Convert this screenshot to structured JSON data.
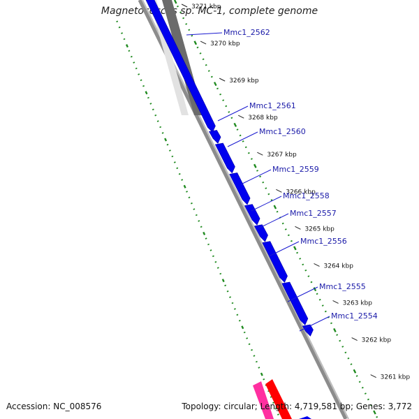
{
  "title": "Magnetococcus sp. MC-1, complete genome",
  "accession": "Accession: NC_008576",
  "topology": "Topology: circular; Length: 4,719,581 bp; Genes: 3,772",
  "ticks": [
    {
      "label": "3271 kbp",
      "pos": 3271
    },
    {
      "label": "3270 kbp",
      "pos": 3270
    },
    {
      "label": "3269 kbp",
      "pos": 3269
    },
    {
      "label": "3268 kbp",
      "pos": 3268
    },
    {
      "label": "3267 kbp",
      "pos": 3267
    },
    {
      "label": "3266 kbp",
      "pos": 3266
    },
    {
      "label": "3265 kbp",
      "pos": 3265
    },
    {
      "label": "3264 kbp",
      "pos": 3264
    },
    {
      "label": "3263 kbp",
      "pos": 3263
    },
    {
      "label": "3262 kbp",
      "pos": 3262
    },
    {
      "label": "3261 kbp",
      "pos": 3261
    }
  ],
  "genes": [
    {
      "label": "Mmc1_2562",
      "start": 3271.3,
      "end": 3267.6,
      "track": "outer",
      "color": "#0000ee"
    },
    {
      "label": "Mmc1_2561",
      "start": 3267.6,
      "end": 3267.3,
      "track": "outer",
      "color": "#0000ee"
    },
    {
      "label": "Mmc1_2560",
      "start": 3267.25,
      "end": 3266.5,
      "track": "outer",
      "color": "#0000ee"
    },
    {
      "label": "Mmc1_2559",
      "start": 3266.45,
      "end": 3265.65,
      "track": "outer",
      "color": "#0000ee"
    },
    {
      "label": "Mmc1_2558",
      "start": 3265.6,
      "end": 3265.1,
      "track": "outer",
      "color": "#0000ee"
    },
    {
      "label": "Mmc1_2557",
      "start": 3265.05,
      "end": 3264.65,
      "track": "outer",
      "color": "#0000ee"
    },
    {
      "label": "Mmc1_2556",
      "start": 3264.6,
      "end": 3263.55,
      "track": "outer",
      "color": "#0000ee"
    },
    {
      "label": "Mmc1_2555",
      "start": 3263.5,
      "end": 3262.4,
      "track": "outer",
      "color": "#0000ee"
    },
    {
      "label": "Mmc1_2554",
      "start": 3262.35,
      "end": 3262.1,
      "track": "outer",
      "color": "#0000ee"
    }
  ],
  "colors": {
    "backbone": "#8c8c8c",
    "gray_feature": "#6b6b6b",
    "gene": "#0000ee",
    "gc_skew": "#1f8a1f",
    "pink_feature": "#ff2fa0",
    "red_feature": "#ff0000",
    "label_line": "#1a1ad0"
  }
}
